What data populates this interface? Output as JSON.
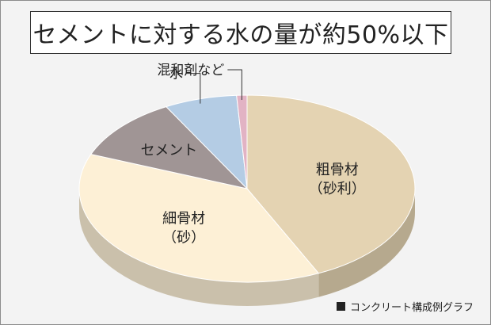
{
  "title": "セメントに対する水の量が約50%以下",
  "caption": "コンクリート構成例グラフ",
  "chart_data": {
    "type": "pie",
    "title": "セメントに対する水の量が約50%以下",
    "slices": [
      {
        "label": "粗骨材",
        "sublabel": "（砂利）",
        "value": 43,
        "color": "#e4d3b2"
      },
      {
        "label": "細骨材",
        "sublabel": "（砂）",
        "value": 38,
        "color": "#fdf0d6"
      },
      {
        "label": "セメント",
        "sublabel": "",
        "value": 11,
        "color": "#a09595"
      },
      {
        "label": "水",
        "sublabel": "",
        "value": 7,
        "color": "#b4cce4"
      },
      {
        "label": "混和剤など",
        "sublabel": "",
        "value": 1,
        "color": "#e2b3c4"
      }
    ],
    "legend": "none",
    "start_angle_deg": -90,
    "direction": "clockwise"
  }
}
